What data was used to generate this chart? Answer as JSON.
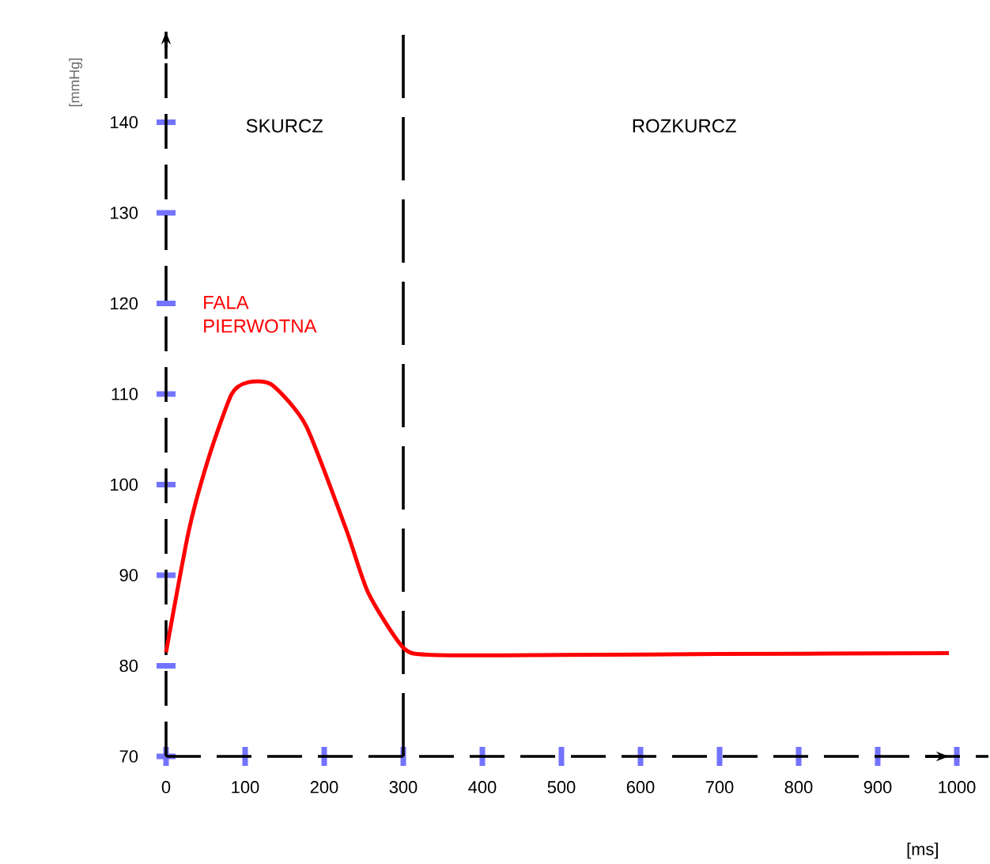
{
  "chart_data": {
    "type": "line",
    "xlabel": "[ms]",
    "ylabel": "[mmHg]",
    "annotations": [
      "SKURCZ",
      "ROZKURCZ",
      "FALA PIERWOTNA"
    ],
    "xlim": [
      0,
      1040
    ],
    "ylim": [
      70,
      150
    ],
    "xticks": [
      0,
      100,
      200,
      300,
      400,
      500,
      600,
      700,
      800,
      900,
      1000
    ],
    "yticks": [
      70,
      80,
      90,
      100,
      110,
      120,
      130,
      140
    ],
    "ref_lines": [
      {
        "axis": "x",
        "value": 300,
        "color": "#000000",
        "line_style": "dashed"
      }
    ],
    "series": [
      {
        "color": "#ff0000",
        "x": [
          0,
          29,
          54,
          83,
          104,
          134,
          177,
          228,
          256,
          300,
          336,
          500,
          700,
          990
        ],
        "values": [
          81.5,
          95,
          103,
          110,
          111.3,
          111,
          106.5,
          95,
          88,
          82,
          81.2,
          81.2,
          81.3,
          81.4
        ]
      }
    ]
  }
}
